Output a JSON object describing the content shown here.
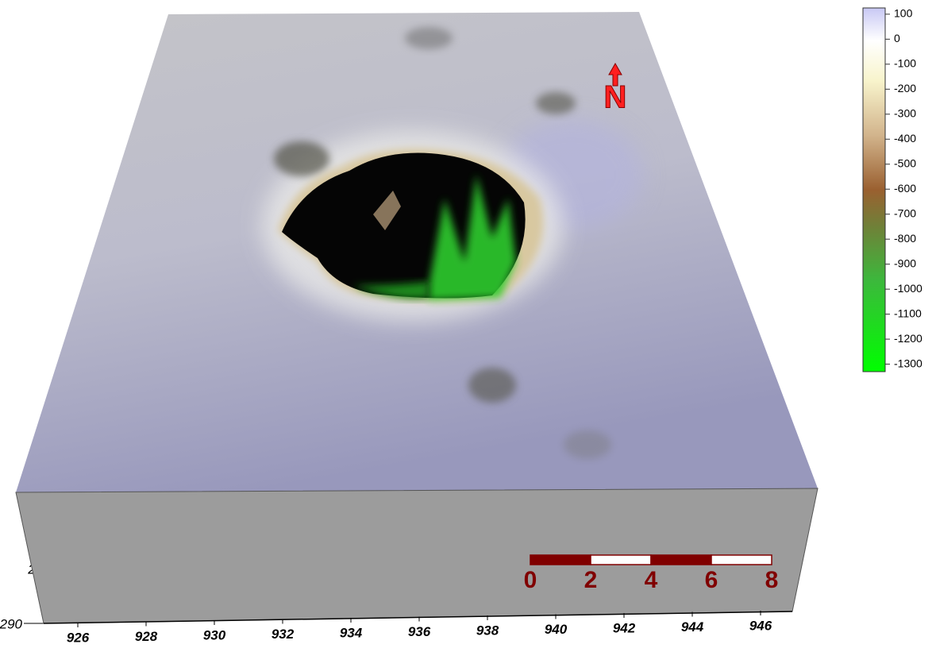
{
  "colorbar": {
    "ticks": [
      100,
      0,
      -100,
      -200,
      -300,
      -400,
      -500,
      -600,
      -700,
      -800,
      -900,
      -1000,
      -1100,
      -1200,
      -1300
    ],
    "range": [
      125,
      -1330
    ]
  },
  "x_axis": {
    "ticks": [
      926,
      928,
      930,
      932,
      934,
      936,
      938,
      940,
      942,
      944,
      946
    ]
  },
  "y_axis": {
    "labels": [
      "2",
      "290"
    ]
  },
  "scale_bar": {
    "labels": [
      0,
      2,
      4,
      6,
      8
    ]
  },
  "north_arrow": {
    "label": "N"
  }
}
